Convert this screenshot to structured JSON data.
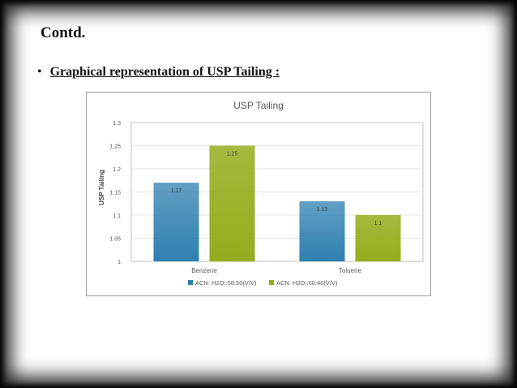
{
  "slide": {
    "title": "Contd.",
    "bullet_symbol": "•",
    "bullet_text": "Graphical representation of USP Tailing :"
  },
  "chart_data": {
    "type": "bar",
    "title": "USP Tailing",
    "xlabel": "",
    "ylabel": "USP Tailing",
    "categories": [
      "Benzene",
      "Toluene"
    ],
    "series": [
      {
        "name": "ACN: H2O::50:50(V/V)",
        "values": [
          1.17,
          1.13
        ],
        "color": "#2e7fb0"
      },
      {
        "name": "ACN: H2O::60:40(V/V)",
        "values": [
          1.25,
          1.1
        ],
        "color": "#94ad1c"
      }
    ],
    "data_labels": [
      [
        "1.17",
        "1.13"
      ],
      [
        "1.25",
        "1.1"
      ]
    ],
    "ylim": [
      1,
      1.3
    ],
    "yticks": [
      "1",
      "1.05",
      "1.1",
      "1.15",
      "1.2",
      "1.25",
      "1.3"
    ],
    "grid": true,
    "legend_position": "bottom"
  }
}
